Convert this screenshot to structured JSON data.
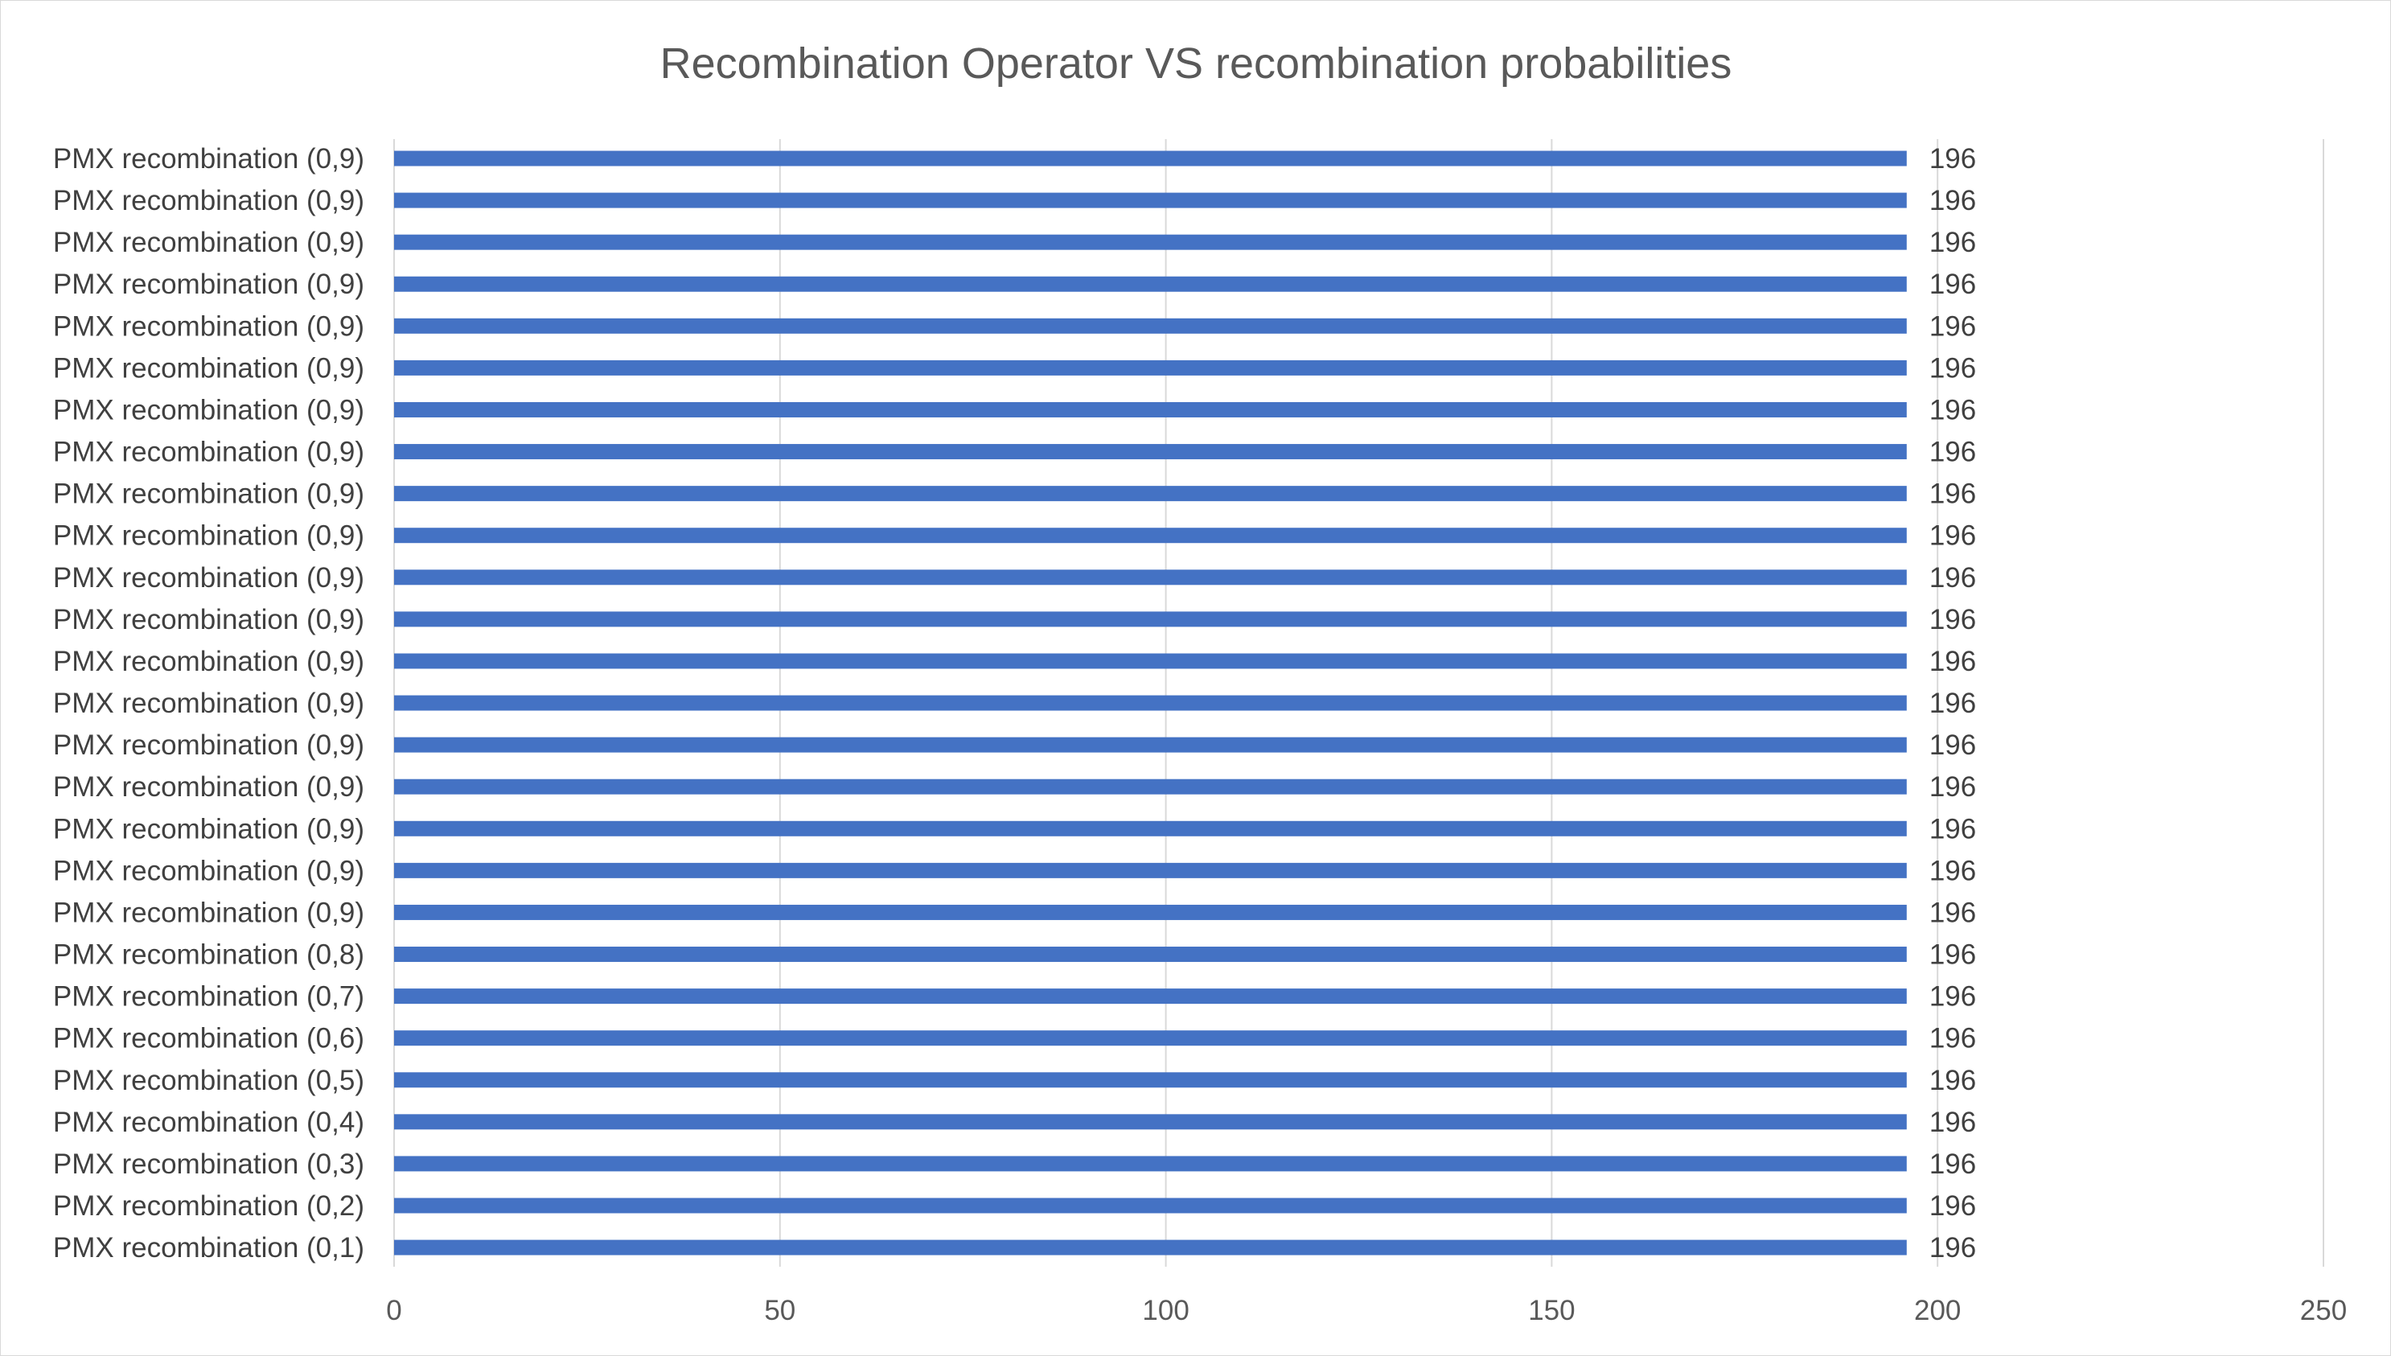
{
  "chart_data": {
    "type": "bar",
    "orientation": "horizontal",
    "title": "Recombination Operator VS  recombination probabilities",
    "xlabel": "",
    "ylabel": "",
    "xlim": [
      0,
      250
    ],
    "x_ticks": [
      0,
      50,
      100,
      150,
      200,
      250
    ],
    "grid": true,
    "legend": "none",
    "bar_color": "#4472C4",
    "categories": [
      "PMX recombination (0,9)",
      "PMX recombination (0,9)",
      "PMX recombination (0,9)",
      "PMX recombination (0,9)",
      "PMX recombination (0,9)",
      "PMX recombination (0,9)",
      "PMX recombination (0,9)",
      "PMX recombination (0,9)",
      "PMX recombination (0,9)",
      "PMX recombination (0,9)",
      "PMX recombination (0,9)",
      "PMX recombination (0,9)",
      "PMX recombination (0,9)",
      "PMX recombination (0,9)",
      "PMX recombination (0,9)",
      "PMX recombination (0,9)",
      "PMX recombination (0,9)",
      "PMX recombination (0,9)",
      "PMX recombination (0,9)",
      "PMX recombination (0,8)",
      "PMX recombination (0,7)",
      "PMX recombination (0,6)",
      "PMX recombination (0,5)",
      "PMX recombination (0,4)",
      "PMX recombination (0,3)",
      "PMX recombination (0,2)",
      "PMX recombination (0,1)"
    ],
    "values": [
      196,
      196,
      196,
      196,
      196,
      196,
      196,
      196,
      196,
      196,
      196,
      196,
      196,
      196,
      196,
      196,
      196,
      196,
      196,
      196,
      196,
      196,
      196,
      196,
      196,
      196,
      196
    ]
  }
}
